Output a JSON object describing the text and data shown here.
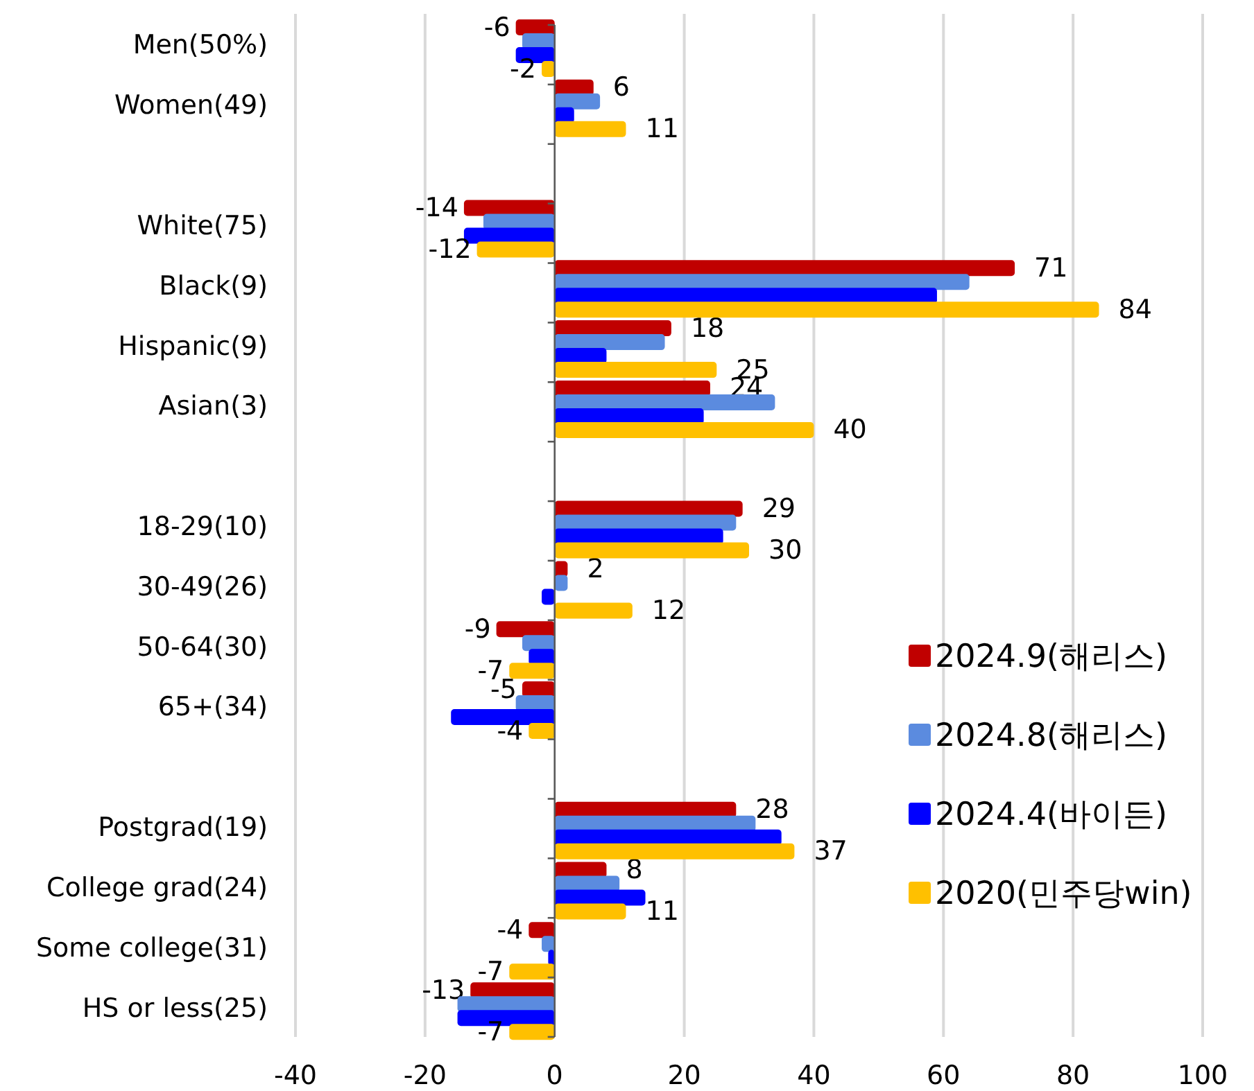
{
  "chart_data": {
    "type": "bar",
    "orientation": "horizontal",
    "categories": [
      "Men(50%)",
      "Women(49)",
      null,
      "White(75)",
      "Black(9)",
      "Hispanic(9)",
      "Asian(3)",
      null,
      "18-29(10)",
      "30-49(26)",
      "50-64(30)",
      "65+(34)",
      null,
      "Postgrad(19)",
      "College grad(24)",
      "Some college(31)",
      "HS or less(25)"
    ],
    "series": [
      {
        "name": "2024.9(해리스)",
        "color": "#c00000",
        "values": [
          -6,
          6,
          null,
          -14,
          71,
          18,
          24,
          null,
          29,
          2,
          -9,
          -5,
          null,
          28,
          8,
          -4,
          -13
        ],
        "value_labels": [
          "-6",
          "6",
          null,
          "-14",
          "71",
          "18",
          "24",
          null,
          "29",
          "2",
          "-9",
          "-5",
          null,
          "28",
          "8",
          "-4",
          "-13"
        ]
      },
      {
        "name": "2024.8(해리스)",
        "color": "#5b8bdf",
        "values": [
          -5,
          7,
          null,
          -11,
          64,
          17,
          34,
          null,
          28,
          2,
          -5,
          -6,
          null,
          31,
          10,
          -2,
          -15
        ]
      },
      {
        "name": "2024.4(바이든)",
        "color": "#0000ff",
        "values": [
          -6,
          3,
          null,
          -14,
          59,
          8,
          23,
          null,
          26,
          -2,
          -4,
          -16,
          null,
          35,
          14,
          -1,
          -15
        ]
      },
      {
        "name": "2020(민주당win)",
        "color": "#ffc000",
        "values": [
          -2,
          11,
          null,
          -12,
          84,
          25,
          40,
          null,
          30,
          12,
          -7,
          -4,
          null,
          37,
          11,
          -7,
          -7
        ],
        "value_labels": [
          "-2",
          "11",
          null,
          "-12",
          "84",
          "25",
          "40",
          null,
          "30",
          "12",
          "-7",
          "-4",
          null,
          "37",
          "11",
          "-7",
          "-7"
        ]
      }
    ],
    "xlim": [
      -40,
      100
    ],
    "xticks": [
      -40,
      -20,
      0,
      20,
      40,
      60,
      80,
      100
    ],
    "grid": "x",
    "legend": "bottom right"
  }
}
